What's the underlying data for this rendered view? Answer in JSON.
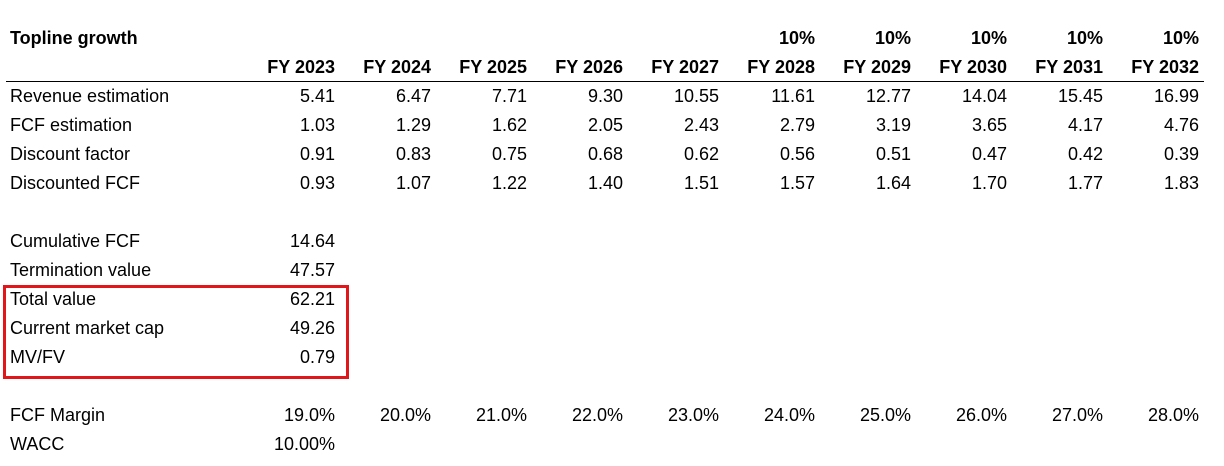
{
  "title": "Topline growth",
  "growth_rates": [
    "",
    "",
    "",
    "",
    "",
    "10%",
    "10%",
    "10%",
    "10%",
    "10%"
  ],
  "years": [
    "FY 2023",
    "FY 2024",
    "FY 2025",
    "FY 2026",
    "FY 2027",
    "FY 2028",
    "FY 2029",
    "FY 2030",
    "FY 2031",
    "FY 2032"
  ],
  "rows": [
    {
      "label": "Revenue estimation",
      "values": [
        "5.41",
        "6.47",
        "7.71",
        "9.30",
        "10.55",
        "11.61",
        "12.77",
        "14.04",
        "15.45",
        "16.99"
      ]
    },
    {
      "label": "FCF estimation",
      "values": [
        "1.03",
        "1.29",
        "1.62",
        "2.05",
        "2.43",
        "2.79",
        "3.19",
        "3.65",
        "4.17",
        "4.76"
      ]
    },
    {
      "label": "Discount factor",
      "values": [
        "0.91",
        "0.83",
        "0.75",
        "0.68",
        "0.62",
        "0.56",
        "0.51",
        "0.47",
        "0.42",
        "0.39"
      ]
    },
    {
      "label": "Discounted FCF",
      "values": [
        "0.93",
        "1.07",
        "1.22",
        "1.40",
        "1.51",
        "1.57",
        "1.64",
        "1.70",
        "1.77",
        "1.83"
      ]
    }
  ],
  "summary": [
    {
      "label": "Cumulative FCF",
      "value": "14.64"
    },
    {
      "label": "Termination value",
      "value": "47.57"
    },
    {
      "label": "Total value",
      "value": "62.21"
    },
    {
      "label": "Current market cap",
      "value": "49.26"
    },
    {
      "label": "MV/FV",
      "value": "0.79"
    }
  ],
  "fcf_margin": {
    "label": "FCF Margin",
    "values": [
      "19.0%",
      "20.0%",
      "21.0%",
      "22.0%",
      "23.0%",
      "24.0%",
      "25.0%",
      "26.0%",
      "27.0%",
      "28.0%"
    ]
  },
  "wacc": {
    "label": "WACC",
    "value": "10.00%"
  },
  "colors": {
    "highlight_border": "#e0161b"
  }
}
